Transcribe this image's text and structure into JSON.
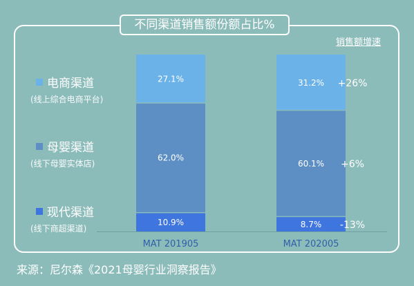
{
  "header": {
    "title": "不同渠道销售额份额占比%"
  },
  "growth_header": "销售额增速",
  "source": "来源：尼尔森《2021母婴行业洞察报告》",
  "legend": [
    {
      "name": "电商渠道",
      "sub": "(线上综合电商平台)",
      "color": "#6bb2e8"
    },
    {
      "name": "母婴渠道",
      "sub": "(线下母婴实体店)",
      "color": "#5e8fc4"
    },
    {
      "name": "现代渠道",
      "sub": "(线下商超渠道)",
      "color": "#3f75de"
    }
  ],
  "chart_data": {
    "type": "bar",
    "stacked": true,
    "categories": [
      "MAT 201905",
      "MAT 202005"
    ],
    "series": [
      {
        "name": "现代渠道",
        "values": [
          10.9,
          8.7
        ],
        "labels": [
          "10.9%",
          "8.7%"
        ],
        "color": "#3f75de",
        "growth": "-13%"
      },
      {
        "name": "母婴渠道",
        "values": [
          62.0,
          60.1
        ],
        "labels": [
          "62.0%",
          "60.1%"
        ],
        "color": "#5e8fc4",
        "growth": "+6%"
      },
      {
        "name": "电商渠道",
        "values": [
          27.1,
          31.2
        ],
        "labels": [
          "27.1%",
          "31.2%"
        ],
        "color": "#6bb2e8",
        "growth": "+26%"
      }
    ],
    "ylim": [
      0,
      100
    ],
    "grid": false
  }
}
